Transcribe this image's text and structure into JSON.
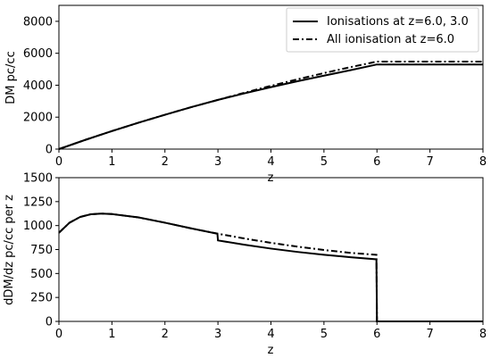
{
  "chart_data": [
    {
      "type": "line",
      "xlabel": "z",
      "ylabel": "DM pc/cc",
      "xlim": [
        0,
        8
      ],
      "ylim": [
        0,
        9000
      ],
      "xticks": [
        0,
        1,
        2,
        3,
        4,
        5,
        6,
        7,
        8
      ],
      "yticks": [
        0,
        2000,
        4000,
        6000,
        8000
      ],
      "grid": false,
      "legend_position": "top-right",
      "series": [
        {
          "name": "Ionisations at z=6.0, 3.0",
          "style": "solid",
          "x": [
            0,
            0.5,
            1,
            1.5,
            2,
            2.5,
            3,
            3.5,
            4,
            4.5,
            5,
            5.5,
            6,
            6.5,
            7,
            7.5,
            8
          ],
          "y": [
            0,
            580,
            1130,
            1650,
            2150,
            2630,
            3080,
            3490,
            3880,
            4250,
            4600,
            4940,
            5300,
            5300,
            5300,
            5300,
            5300
          ]
        },
        {
          "name": "All ionisation at z=6.0",
          "style": "dashdot",
          "x": [
            0,
            0.5,
            1,
            1.5,
            2,
            2.5,
            3,
            3.5,
            4,
            4.5,
            5,
            5.5,
            6,
            6.5,
            7,
            7.5,
            8
          ],
          "y": [
            0,
            580,
            1130,
            1650,
            2150,
            2630,
            3080,
            3530,
            3960,
            4370,
            4760,
            5130,
            5480,
            5480,
            5480,
            5480,
            5480
          ]
        }
      ]
    },
    {
      "type": "line",
      "xlabel": "z",
      "ylabel": "dDM/dz pc/cc per z",
      "xlim": [
        0,
        8
      ],
      "ylim": [
        0,
        1500
      ],
      "xticks": [
        0,
        1,
        2,
        3,
        4,
        5,
        6,
        7,
        8
      ],
      "yticks": [
        0,
        250,
        500,
        750,
        1000,
        1250,
        1500
      ],
      "grid": false,
      "series": [
        {
          "name": "Ionisations at z=6.0, 3.0",
          "style": "solid",
          "x": [
            0,
            0.2,
            0.4,
            0.6,
            0.8,
            1,
            1.5,
            2,
            2.5,
            2.99,
            3.0,
            3.5,
            4,
            4.5,
            5,
            5.5,
            5.99,
            6.0,
            6.5,
            7,
            7.5,
            8
          ],
          "y": [
            925,
            1030,
            1090,
            1118,
            1125,
            1120,
            1085,
            1030,
            970,
            915,
            845,
            800,
            760,
            725,
            695,
            670,
            648,
            0,
            0,
            0,
            0,
            0
          ]
        },
        {
          "name": "All ionisation at z=6.0",
          "style": "dashdot",
          "x": [
            0,
            0.2,
            0.4,
            0.6,
            0.8,
            1,
            1.5,
            2,
            2.5,
            3,
            3.5,
            4,
            4.5,
            5,
            5.5,
            5.99,
            6.0,
            6.5,
            7,
            7.5,
            8
          ],
          "y": [
            925,
            1030,
            1090,
            1118,
            1125,
            1120,
            1085,
            1030,
            970,
            915,
            865,
            820,
            780,
            745,
            715,
            695,
            0,
            0,
            0,
            0,
            0
          ]
        }
      ]
    }
  ]
}
